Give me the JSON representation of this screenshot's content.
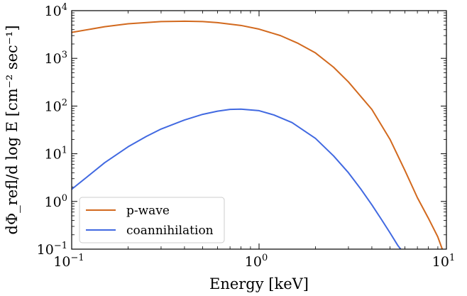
{
  "chart_data": {
    "type": "line",
    "xscale": "log",
    "yscale": "log",
    "xlim": [
      0.1,
      10
    ],
    "ylim": [
      0.1,
      10000
    ],
    "xlabel": "Energy [keV]",
    "ylabel": "dΦ_refl/d log E [cm⁻² sec⁻¹]",
    "x_ticks": [
      {
        "value": 0.1,
        "base": "10",
        "exp": "−1"
      },
      {
        "value": 1,
        "base": "10",
        "exp": "0"
      },
      {
        "value": 10,
        "base": "10",
        "exp": "1"
      }
    ],
    "y_ticks": [
      {
        "value": 0.1,
        "base": "10",
        "exp": "−1"
      },
      {
        "value": 1,
        "base": "10",
        "exp": "0"
      },
      {
        "value": 10,
        "base": "10",
        "exp": "1"
      },
      {
        "value": 100,
        "base": "10",
        "exp": "2"
      },
      {
        "value": 1000,
        "base": "10",
        "exp": "3"
      },
      {
        "value": 10000,
        "base": "10",
        "exp": "4"
      }
    ],
    "grid": false,
    "legend_position": "lower-left",
    "series": [
      {
        "name": "p-wave",
        "color": "#d2691e",
        "x": [
          0.1,
          0.15,
          0.2,
          0.3,
          0.4,
          0.5,
          0.6,
          0.8,
          1.0,
          1.3,
          1.6,
          2.0,
          2.5,
          3.0,
          4.0,
          5.0,
          6.0,
          7.0,
          8.0,
          9.0,
          9.5
        ],
        "y": [
          3500,
          4600,
          5300,
          5900,
          6000,
          5900,
          5600,
          4900,
          4100,
          3000,
          2100,
          1300,
          650,
          320,
          85,
          20,
          4.5,
          1.2,
          0.45,
          0.18,
          0.1
        ]
      },
      {
        "name": "coannihilation",
        "color": "#4169e1",
        "x": [
          0.1,
          0.12,
          0.15,
          0.2,
          0.25,
          0.3,
          0.4,
          0.5,
          0.6,
          0.7,
          0.8,
          1.0,
          1.2,
          1.5,
          2.0,
          2.5,
          3.0,
          3.5,
          4.0,
          4.5,
          5.0,
          5.5,
          5.7
        ],
        "y": [
          1.8,
          3.2,
          6.5,
          14,
          23,
          33,
          51,
          67,
          78,
          85,
          86,
          80,
          65,
          45,
          21,
          9,
          4,
          1.8,
          0.85,
          0.42,
          0.22,
          0.12,
          0.1
        ]
      }
    ]
  }
}
